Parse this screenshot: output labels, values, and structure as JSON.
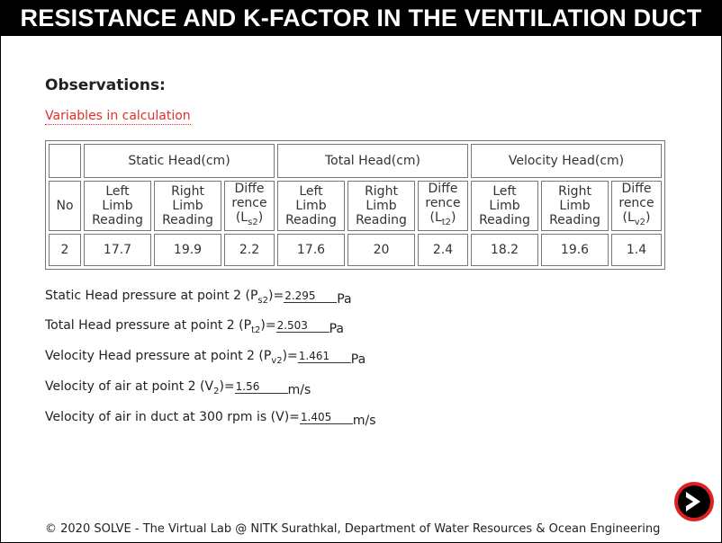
{
  "header": {
    "title": "RESISTANCE AND K-FACTOR IN THE VENTILATION DUCT"
  },
  "observations": {
    "title": "Observations:",
    "variables_link": "Variables in calculation",
    "table": {
      "groups": [
        "Static Head(cm)",
        "Total Head(cm)",
        "Velocity Head(cm)"
      ],
      "no_label": "No",
      "left_label": [
        "Left",
        "Limb",
        "Reading"
      ],
      "right_label": [
        "Right",
        "Limb",
        "Reading"
      ],
      "diff_label": [
        "Diffe",
        "rence"
      ],
      "diff_subs": [
        "s2",
        "t2",
        "v2"
      ],
      "row": {
        "no": "2",
        "static_left": "17.7",
        "static_right": "19.9",
        "static_diff": "2.2",
        "total_left": "17.6",
        "total_right": "20",
        "total_diff": "2.4",
        "vel_left": "18.2",
        "vel_right": "19.6",
        "vel_diff": "1.4"
      }
    }
  },
  "results": [
    {
      "pre": "Static Head pressure at point 2 (P",
      "sub": "s2",
      "post": ")=",
      "value": "2.295",
      "unit": "Pa"
    },
    {
      "pre": "Total Head pressure at point 2 (P",
      "sub": "t2",
      "post": ")=",
      "value": "2.503",
      "unit": "Pa"
    },
    {
      "pre": "Velocity Head pressure at point 2 (P",
      "sub": "v2",
      "post": ")=",
      "value": "1.461",
      "unit": "Pa"
    },
    {
      "pre": "Velocity of air at point 2 (V",
      "sub": "2",
      "post": ")=",
      "value": "1.56",
      "unit": "m/s"
    },
    {
      "pre": "Velocity of air in duct at 300 rpm is (V)=",
      "sub": "",
      "post": "",
      "value": "1.405",
      "unit": "m/s"
    }
  ],
  "footer": {
    "text": "© 2020 SOLVE - The Virtual Lab @ NITK Surathkal, Department of Water Resources & Ocean Engineering"
  },
  "next_button": {
    "icon": "next-arrow-icon",
    "color": "#e02020"
  }
}
